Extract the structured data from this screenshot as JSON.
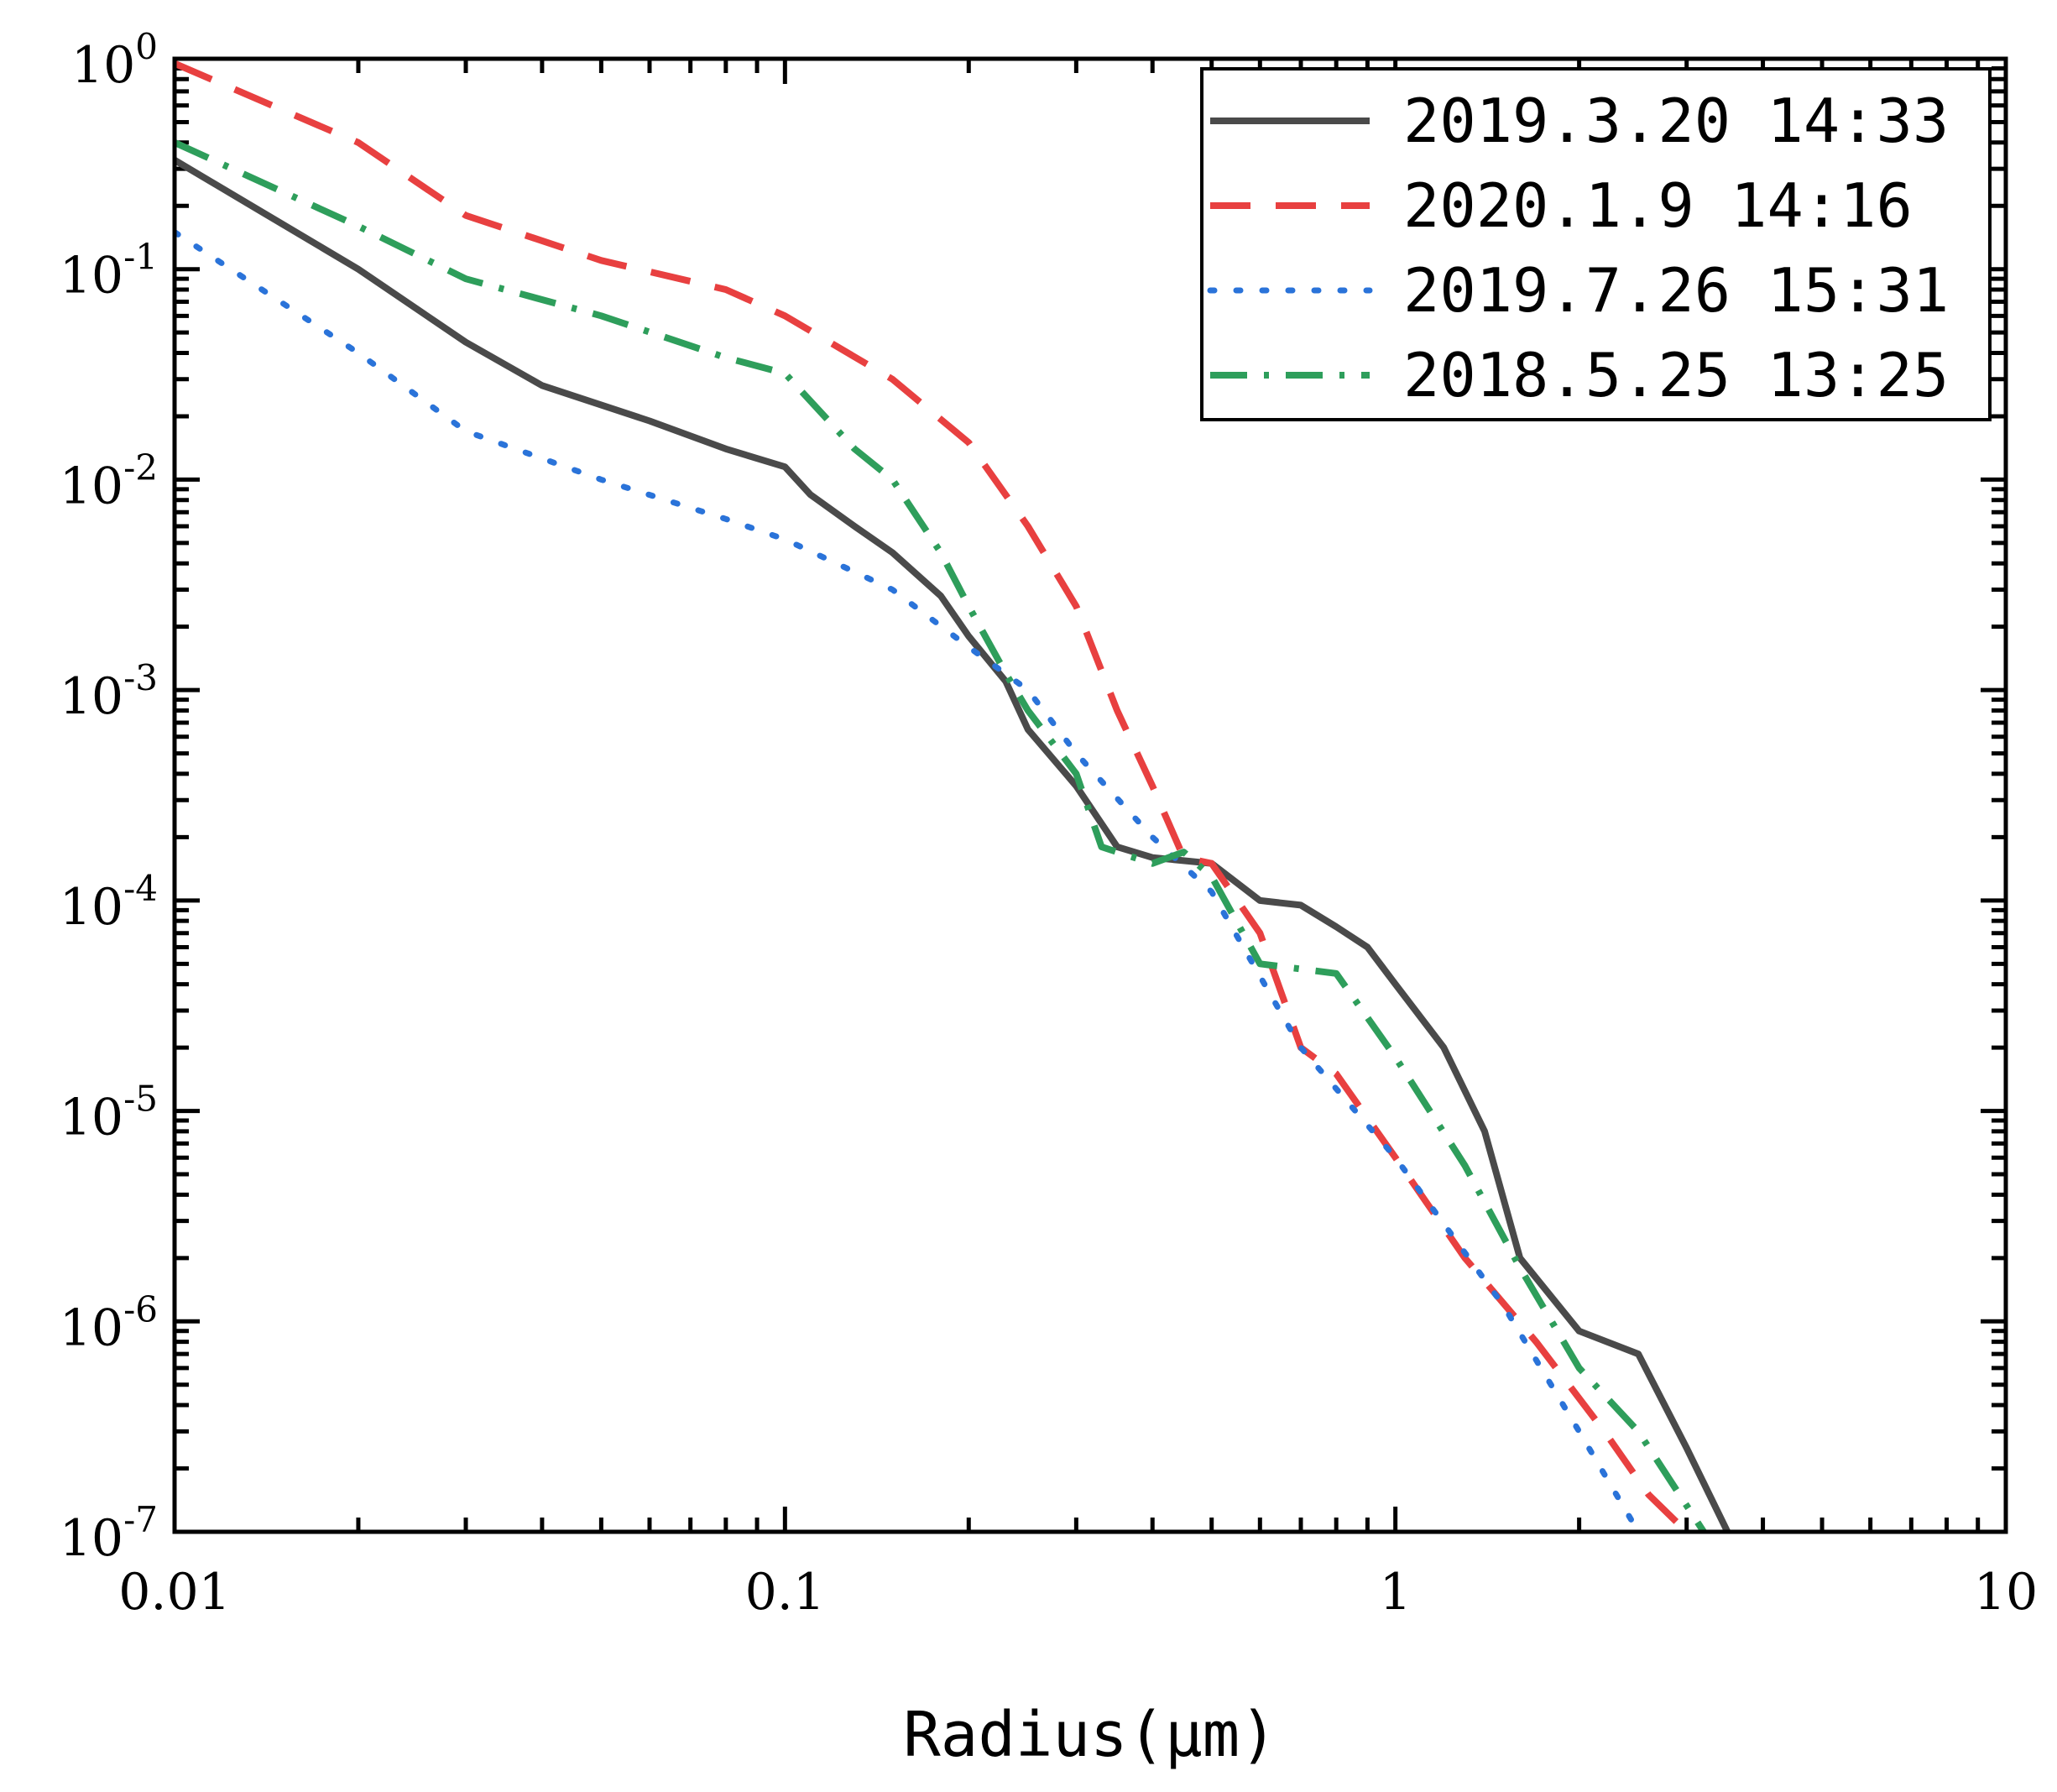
{
  "chart_data": {
    "type": "line",
    "title": "",
    "xlabel": "Radius(μm)",
    "ylabel": "",
    "xscale": "log",
    "yscale": "log",
    "xlim": [
      0.01,
      10
    ],
    "ylim": [
      1e-07,
      1
    ],
    "x_ticks": [
      {
        "value": 0.01,
        "label": "0.01"
      },
      {
        "value": 0.1,
        "label": "0.1"
      },
      {
        "value": 1,
        "label": "1"
      },
      {
        "value": 10,
        "label": "10"
      }
    ],
    "y_ticks": [
      {
        "value": 1,
        "base": "10",
        "exp": "0"
      },
      {
        "value": 0.1,
        "base": "10",
        "exp": "-1"
      },
      {
        "value": 0.01,
        "base": "10",
        "exp": "-2"
      },
      {
        "value": 0.001,
        "base": "10",
        "exp": "-3"
      },
      {
        "value": 0.0001,
        "base": "10",
        "exp": "-4"
      },
      {
        "value": 1e-05,
        "base": "10",
        "exp": "-5"
      },
      {
        "value": 1e-06,
        "base": "10",
        "exp": "-6"
      },
      {
        "value": 1e-07,
        "base": "10",
        "exp": "-7"
      }
    ],
    "legend_position": "top-right",
    "series": [
      {
        "name": "2019.3.20 14:33",
        "color": "#4a4a4a",
        "style": "solid",
        "x": [
          0.01,
          0.02,
          0.03,
          0.04,
          0.06,
          0.08,
          0.1,
          0.11,
          0.13,
          0.15,
          0.18,
          0.2,
          0.23,
          0.25,
          0.3,
          0.35,
          0.4,
          0.5,
          0.6,
          0.7,
          0.8,
          0.9,
          1.0,
          1.2,
          1.4,
          1.6,
          2.0,
          2.5,
          3.0,
          3.5
        ],
        "values": [
          0.33,
          0.1,
          0.045,
          0.028,
          0.019,
          0.014,
          0.0115,
          0.0085,
          0.006,
          0.0045,
          0.0028,
          0.0018,
          0.0011,
          0.00065,
          0.00035,
          0.00018,
          0.00016,
          0.00015,
          0.0001,
          9.5e-05,
          7.5e-05,
          6e-05,
          4e-05,
          2e-05,
          8e-06,
          2e-06,
          9e-07,
          7e-07,
          2.5e-07,
          1e-07
        ]
      },
      {
        "name": "2020.1.9  14:16",
        "color": "#e84040",
        "style": "dashed",
        "x": [
          0.01,
          0.02,
          0.03,
          0.05,
          0.08,
          0.1,
          0.15,
          0.2,
          0.25,
          0.3,
          0.35,
          0.4,
          0.45,
          0.5,
          0.6,
          0.7,
          0.8,
          1.0,
          1.3,
          1.7,
          2.2,
          2.6,
          3.0
        ],
        "values": [
          0.95,
          0.4,
          0.18,
          0.11,
          0.08,
          0.06,
          0.03,
          0.015,
          0.006,
          0.0025,
          0.0008,
          0.00035,
          0.00016,
          0.00015,
          7e-05,
          2e-05,
          1.5e-05,
          6e-06,
          2e-06,
          8e-07,
          3e-07,
          1.5e-07,
          1e-07
        ]
      },
      {
        "name": "2019.7.26 15:31",
        "color": "#2a73d9",
        "style": "dotted",
        "x": [
          0.01,
          0.02,
          0.03,
          0.05,
          0.08,
          0.1,
          0.15,
          0.2,
          0.25,
          0.3,
          0.4,
          0.5,
          0.7,
          1.0,
          1.5,
          2.0,
          2.5
        ],
        "values": [
          0.15,
          0.04,
          0.017,
          0.01,
          0.0065,
          0.0052,
          0.003,
          0.0016,
          0.001,
          0.0005,
          0.0002,
          0.00011,
          2e-05,
          6e-06,
          1.2e-06,
          3e-07,
          1e-07
        ]
      },
      {
        "name": "2018.5.25 13:25",
        "color": "#2e9e5b",
        "style": "dashdot",
        "x": [
          0.01,
          0.02,
          0.03,
          0.05,
          0.08,
          0.1,
          0.13,
          0.15,
          0.18,
          0.2,
          0.23,
          0.25,
          0.3,
          0.33,
          0.35,
          0.4,
          0.45,
          0.5,
          0.6,
          0.8,
          1.0,
          1.3,
          1.6,
          2.0,
          2.5,
          3.2
        ],
        "values": [
          0.4,
          0.16,
          0.09,
          0.06,
          0.038,
          0.032,
          0.014,
          0.01,
          0.0045,
          0.0025,
          0.0012,
          0.0008,
          0.0004,
          0.00018,
          0.00017,
          0.00015,
          0.00017,
          0.00013,
          5e-05,
          4.5e-05,
          1.8e-05,
          5.5e-06,
          1.8e-06,
          6e-07,
          3e-07,
          1e-07
        ]
      }
    ]
  }
}
